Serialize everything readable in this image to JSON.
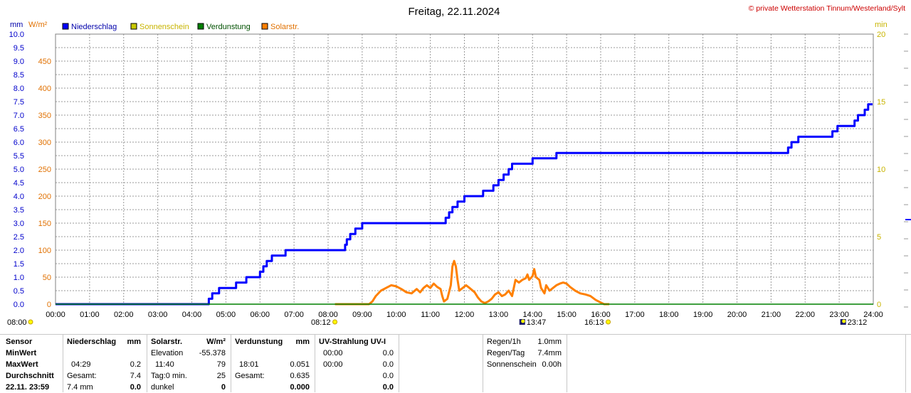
{
  "chart_data": {
    "type": "line",
    "title": "Freitag, 22.11.2024",
    "copyright": "© private Wetterstation Tinnum/Westerland/Sylt",
    "axis_units": {
      "left_mm": "mm",
      "left_wm2": "W/m²",
      "right_min": "min"
    },
    "y_mm": {
      "ticks": [
        "0.0",
        "0.5",
        "1.0",
        "1.5",
        "2.0",
        "2.5",
        "3.0",
        "3.5",
        "4.0",
        "4.5",
        "5.0",
        "5.5",
        "6.0",
        "6.5",
        "7.0",
        "7.5",
        "8.0",
        "8.5",
        "9.0",
        "9.5",
        "10.0"
      ],
      "range": [
        0,
        10
      ],
      "color": "#0000cc"
    },
    "y_wm2": {
      "ticks": [
        "0",
        "50",
        "100",
        "150",
        "200",
        "250",
        "300",
        "350",
        "400",
        "450"
      ],
      "range": [
        0,
        500
      ],
      "color": "#e07000"
    },
    "y_min": {
      "ticks": [
        "0",
        "5",
        "10",
        "15",
        "20"
      ],
      "range": [
        0,
        20
      ],
      "color": "#c8b400"
    },
    "x_ticks": [
      "00:00",
      "01:00",
      "02:00",
      "03:00",
      "04:00",
      "05:00",
      "06:00",
      "07:00",
      "08:00",
      "09:00",
      "10:00",
      "11:00",
      "12:00",
      "13:00",
      "14:00",
      "15:00",
      "16:00",
      "17:00",
      "18:00",
      "19:00",
      "20:00",
      "21:00",
      "22:00",
      "23:00",
      "24:00"
    ],
    "x_range": [
      0,
      24
    ],
    "grid": true,
    "legend": [
      {
        "name": "Niederschlag",
        "color": "#0000ff",
        "text_color": "#0000aa"
      },
      {
        "name": "Sonnenschein",
        "color": "#c8c800",
        "text_color": "#c8b400"
      },
      {
        "name": "Verdunstung",
        "color": "#008000",
        "text_color": "#005000"
      },
      {
        "name": "Solarstr.",
        "color": "#ff8000",
        "text_color": "#e07000"
      }
    ],
    "series": [
      {
        "name": "Niederschlag",
        "axis": "mm",
        "color": "#0000ff",
        "step": true,
        "points": [
          [
            0,
            0
          ],
          [
            4.45,
            0
          ],
          [
            4.5,
            0.2
          ],
          [
            4.6,
            0.4
          ],
          [
            4.8,
            0.6
          ],
          [
            5.2,
            0.6
          ],
          [
            5.3,
            0.8
          ],
          [
            5.6,
            1.0
          ],
          [
            6.0,
            1.2
          ],
          [
            6.1,
            1.4
          ],
          [
            6.2,
            1.6
          ],
          [
            6.35,
            1.8
          ],
          [
            6.5,
            1.8
          ],
          [
            6.7,
            1.8
          ],
          [
            6.75,
            2.0
          ],
          [
            8.45,
            2.0
          ],
          [
            8.5,
            2.2
          ],
          [
            8.55,
            2.4
          ],
          [
            8.65,
            2.6
          ],
          [
            8.8,
            2.8
          ],
          [
            9.0,
            3.0
          ],
          [
            11.4,
            3.0
          ],
          [
            11.45,
            3.2
          ],
          [
            11.55,
            3.4
          ],
          [
            11.65,
            3.6
          ],
          [
            11.8,
            3.8
          ],
          [
            12.0,
            4.0
          ],
          [
            12.5,
            4.0
          ],
          [
            12.55,
            4.2
          ],
          [
            12.8,
            4.2
          ],
          [
            12.85,
            4.4
          ],
          [
            13.0,
            4.6
          ],
          [
            13.15,
            4.8
          ],
          [
            13.3,
            5.0
          ],
          [
            13.4,
            5.2
          ],
          [
            13.9,
            5.2
          ],
          [
            14.0,
            5.4
          ],
          [
            14.6,
            5.4
          ],
          [
            14.7,
            5.6
          ],
          [
            21.4,
            5.6
          ],
          [
            21.5,
            5.8
          ],
          [
            21.6,
            6.0
          ],
          [
            21.8,
            6.2
          ],
          [
            22.7,
            6.2
          ],
          [
            22.8,
            6.4
          ],
          [
            22.95,
            6.6
          ],
          [
            23.35,
            6.6
          ],
          [
            23.45,
            6.8
          ],
          [
            23.55,
            7.0
          ],
          [
            23.75,
            7.2
          ],
          [
            23.85,
            7.4
          ],
          [
            23.98,
            7.4
          ]
        ]
      },
      {
        "name": "Solarstr.",
        "axis": "wm2",
        "color": "#ff8000",
        "step": false,
        "points": [
          [
            8.2,
            0
          ],
          [
            9.2,
            0
          ],
          [
            9.3,
            5
          ],
          [
            9.4,
            15
          ],
          [
            9.55,
            25
          ],
          [
            9.7,
            30
          ],
          [
            9.85,
            35
          ],
          [
            10.0,
            33
          ],
          [
            10.15,
            28
          ],
          [
            10.3,
            22
          ],
          [
            10.45,
            20
          ],
          [
            10.6,
            28
          ],
          [
            10.7,
            22
          ],
          [
            10.8,
            30
          ],
          [
            10.9,
            35
          ],
          [
            11.0,
            30
          ],
          [
            11.1,
            38
          ],
          [
            11.2,
            32
          ],
          [
            11.3,
            28
          ],
          [
            11.35,
            15
          ],
          [
            11.4,
            5
          ],
          [
            11.5,
            10
          ],
          [
            11.6,
            35
          ],
          [
            11.65,
            70
          ],
          [
            11.7,
            80
          ],
          [
            11.75,
            70
          ],
          [
            11.8,
            45
          ],
          [
            11.85,
            25
          ],
          [
            11.95,
            30
          ],
          [
            12.05,
            35
          ],
          [
            12.15,
            30
          ],
          [
            12.3,
            22
          ],
          [
            12.4,
            12
          ],
          [
            12.5,
            5
          ],
          [
            12.6,
            2
          ],
          [
            12.7,
            5
          ],
          [
            12.8,
            10
          ],
          [
            12.9,
            18
          ],
          [
            13.0,
            22
          ],
          [
            13.1,
            15
          ],
          [
            13.2,
            18
          ],
          [
            13.3,
            25
          ],
          [
            13.4,
            15
          ],
          [
            13.5,
            45
          ],
          [
            13.6,
            40
          ],
          [
            13.7,
            45
          ],
          [
            13.8,
            48
          ],
          [
            13.85,
            55
          ],
          [
            13.9,
            45
          ],
          [
            14.0,
            52
          ],
          [
            14.05,
            65
          ],
          [
            14.1,
            50
          ],
          [
            14.2,
            45
          ],
          [
            14.25,
            30
          ],
          [
            14.35,
            20
          ],
          [
            14.4,
            35
          ],
          [
            14.5,
            25
          ],
          [
            14.6,
            30
          ],
          [
            14.7,
            35
          ],
          [
            14.8,
            38
          ],
          [
            14.9,
            40
          ],
          [
            15.0,
            38
          ],
          [
            15.1,
            32
          ],
          [
            15.25,
            25
          ],
          [
            15.4,
            20
          ],
          [
            15.55,
            18
          ],
          [
            15.7,
            15
          ],
          [
            15.85,
            8
          ],
          [
            16.0,
            3
          ],
          [
            16.1,
            0
          ],
          [
            16.25,
            0
          ]
        ]
      },
      {
        "name": "Verdunstung",
        "axis": "mm",
        "color": "#008000",
        "step": false,
        "points": [
          [
            0,
            0
          ],
          [
            24,
            0
          ]
        ]
      }
    ],
    "markers": {
      "left": {
        "time": "08:00",
        "symbol": "sun"
      },
      "items": [
        {
          "time": "08:12",
          "x": 8.2,
          "symbol": "sunrise",
          "row": 2
        },
        {
          "time": "13:47",
          "x": 13.78,
          "symbol": "moon",
          "row": 1
        },
        {
          "time": "16:13",
          "x": 16.22,
          "symbol": "sunset",
          "row": 2
        },
        {
          "time": "23:12",
          "x": 23.2,
          "symbol": "moon",
          "row": 1
        }
      ]
    }
  },
  "stats": {
    "row_labels": [
      "Sensor",
      "MinWert",
      "MaxWert",
      "Durchschnitt",
      "22.11. 23:59"
    ],
    "niederschlag": {
      "header": "Niederschlag",
      "unit": "mm",
      "rows": [
        [
          "",
          ""
        ],
        [
          "04:29",
          "0.2"
        ],
        [
          "Gesamt:",
          "7.4"
        ],
        [
          "7.4 mm",
          "0.0"
        ]
      ]
    },
    "solar": {
      "header": "Solarstr.",
      "unit": "W/m²",
      "rows": [
        [
          "Elevation",
          "-55.378"
        ],
        [
          "11:40",
          "79"
        ],
        [
          "Tag:0 min.",
          "25"
        ],
        [
          "dunkel",
          "0"
        ]
      ]
    },
    "verdunstung": {
      "header": "Verdunstung",
      "unit": "mm",
      "rows": [
        [
          "",
          ""
        ],
        [
          "18:01",
          "0.051"
        ],
        [
          "Gesamt:",
          "0.635"
        ],
        [
          "",
          "0.000"
        ]
      ]
    },
    "uv": {
      "header": "UV-Strahlung UV-I",
      "rows": [
        [
          "00:00",
          "0.0"
        ],
        [
          "00:00",
          "0.0"
        ],
        [
          "",
          "0.0"
        ],
        [
          "",
          "0.0"
        ]
      ]
    },
    "extra": [
      [
        "Regen/1h",
        "1.0mm"
      ],
      [
        "Regen/Tag",
        "7.4mm"
      ],
      [
        "Sonnenschein",
        "0.00h"
      ]
    ]
  }
}
